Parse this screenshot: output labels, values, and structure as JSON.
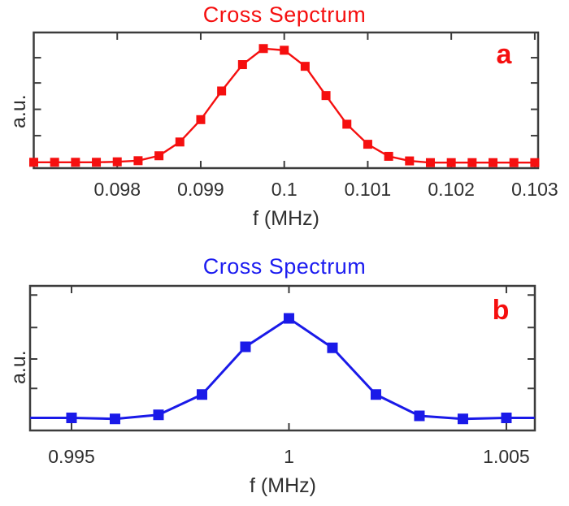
{
  "figure": {
    "background": "#ffffff",
    "axis_color": "#3c3c3c",
    "tick_label_color": "#303030",
    "panel_label_color": "#f50f0f"
  },
  "chart_data": [
    {
      "panel": "a",
      "type": "line",
      "title": "Cross Sepctrum",
      "title_color": "#f50f0f",
      "line_color": "#f50f0f",
      "marker": "filled-square",
      "xlabel": "f (MHz)",
      "ylabel": "a.u.",
      "panel_label": "a",
      "xlim": [
        0.097,
        0.10304
      ],
      "ylim": [
        -0.043,
        1.14
      ],
      "xticks": [
        0.098,
        0.099,
        0.1,
        0.101,
        0.102,
        0.103
      ],
      "xtick_labels": [
        "0.098",
        "0.099",
        "0.1",
        "0.101",
        "0.102",
        "0.103"
      ],
      "ytick_values": [
        0.24,
        0.47,
        0.7,
        0.92
      ],
      "x": [
        0.097,
        0.09725,
        0.0975,
        0.09775,
        0.098,
        0.09825,
        0.0985,
        0.09875,
        0.099,
        0.09925,
        0.0995,
        0.09975,
        0.1,
        0.10025,
        0.1005,
        0.10075,
        0.101,
        0.10125,
        0.1015,
        0.10175,
        0.102,
        0.10225,
        0.1025,
        0.10275,
        0.103
      ],
      "y": [
        0.008,
        0.008,
        0.008,
        0.008,
        0.012,
        0.022,
        0.065,
        0.185,
        0.38,
        0.63,
        0.86,
        1.0,
        0.985,
        0.845,
        0.59,
        0.34,
        0.165,
        0.06,
        0.02,
        0.005,
        0.005,
        0.005,
        0.005,
        0.005,
        0.005
      ]
    },
    {
      "panel": "b",
      "type": "line",
      "title": "Cross Spectrum",
      "title_color": "#1c1cf0",
      "line_color": "#1a1ae8",
      "marker": "filled-square",
      "xlabel": "f (MHz)",
      "ylabel": "a.u.",
      "panel_label": "b",
      "xlim": [
        0.994047,
        1.005655
      ],
      "ylim": [
        -0.104,
        1.32
      ],
      "xticks": [
        0.995,
        1,
        1.005
      ],
      "xtick_labels": [
        "0.995",
        "1",
        "1.005"
      ],
      "ytick_values": [
        0.31,
        0.6,
        0.91,
        1.23
      ],
      "x": [
        0.995,
        0.996,
        0.997,
        0.998,
        0.999,
        1.0,
        1.001,
        1.002,
        1.003,
        1.004,
        1.005
      ],
      "y": [
        0.02,
        0.01,
        0.05,
        0.25,
        0.72,
        1.0,
        0.71,
        0.25,
        0.04,
        0.01,
        0.02
      ],
      "line_extension": {
        "pre": {
          "x": 0.99405,
          "y": 0.02
        },
        "post": {
          "x": 1.00565,
          "y": 0.02
        }
      }
    }
  ]
}
